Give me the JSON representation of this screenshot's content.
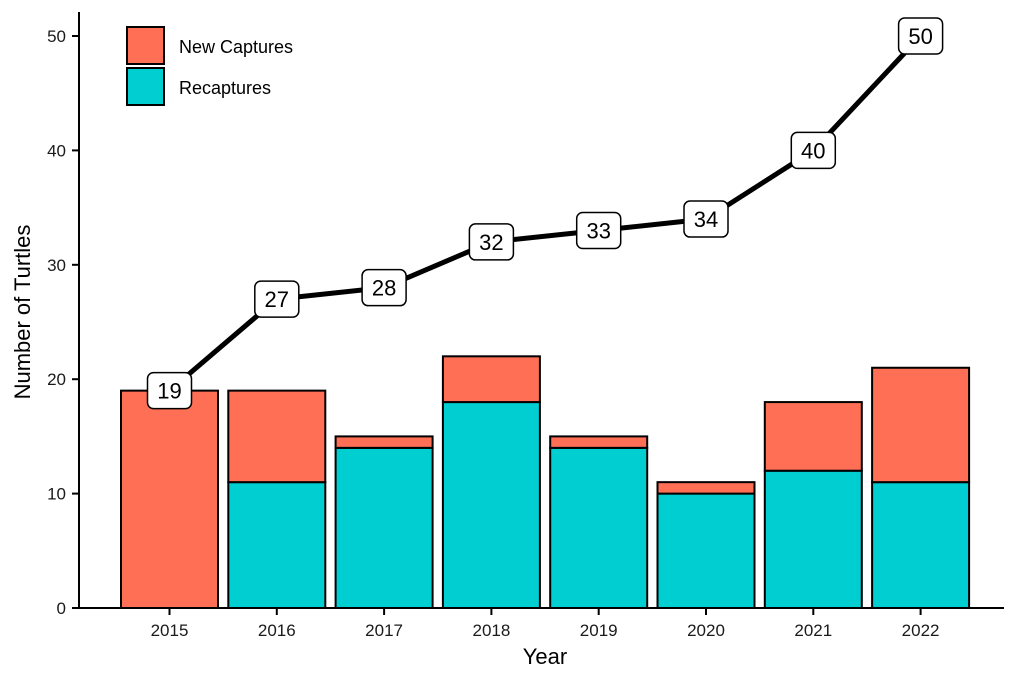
{
  "chart_data": {
    "type": "bar",
    "categories": [
      "2015",
      "2016",
      "2017",
      "2018",
      "2019",
      "2020",
      "2021",
      "2022"
    ],
    "series": [
      {
        "name": "Recaptures",
        "values": [
          0,
          11,
          14,
          18,
          14,
          10,
          12,
          11
        ],
        "color": "#00CED1"
      },
      {
        "name": "New Captures",
        "values": [
          19,
          8,
          1,
          4,
          1,
          1,
          6,
          10
        ],
        "color": "#FF6F55"
      }
    ],
    "line": {
      "values": [
        19,
        27,
        28,
        32,
        33,
        34,
        40,
        50
      ],
      "labels": [
        "19",
        "27",
        "28",
        "32",
        "33",
        "34",
        "40",
        "50"
      ],
      "color": "#000000"
    },
    "xlabel": "Year",
    "ylabel": "Number of Turtles",
    "ylim": [
      0,
      50
    ],
    "yticks": [
      "0",
      "10",
      "20",
      "30",
      "40",
      "50"
    ],
    "legend": {
      "position": "top-left",
      "entries": [
        {
          "label": "New Captures",
          "color": "#FF6F55"
        },
        {
          "label": "Recaptures",
          "color": "#00CED1"
        }
      ]
    },
    "grid": false
  }
}
